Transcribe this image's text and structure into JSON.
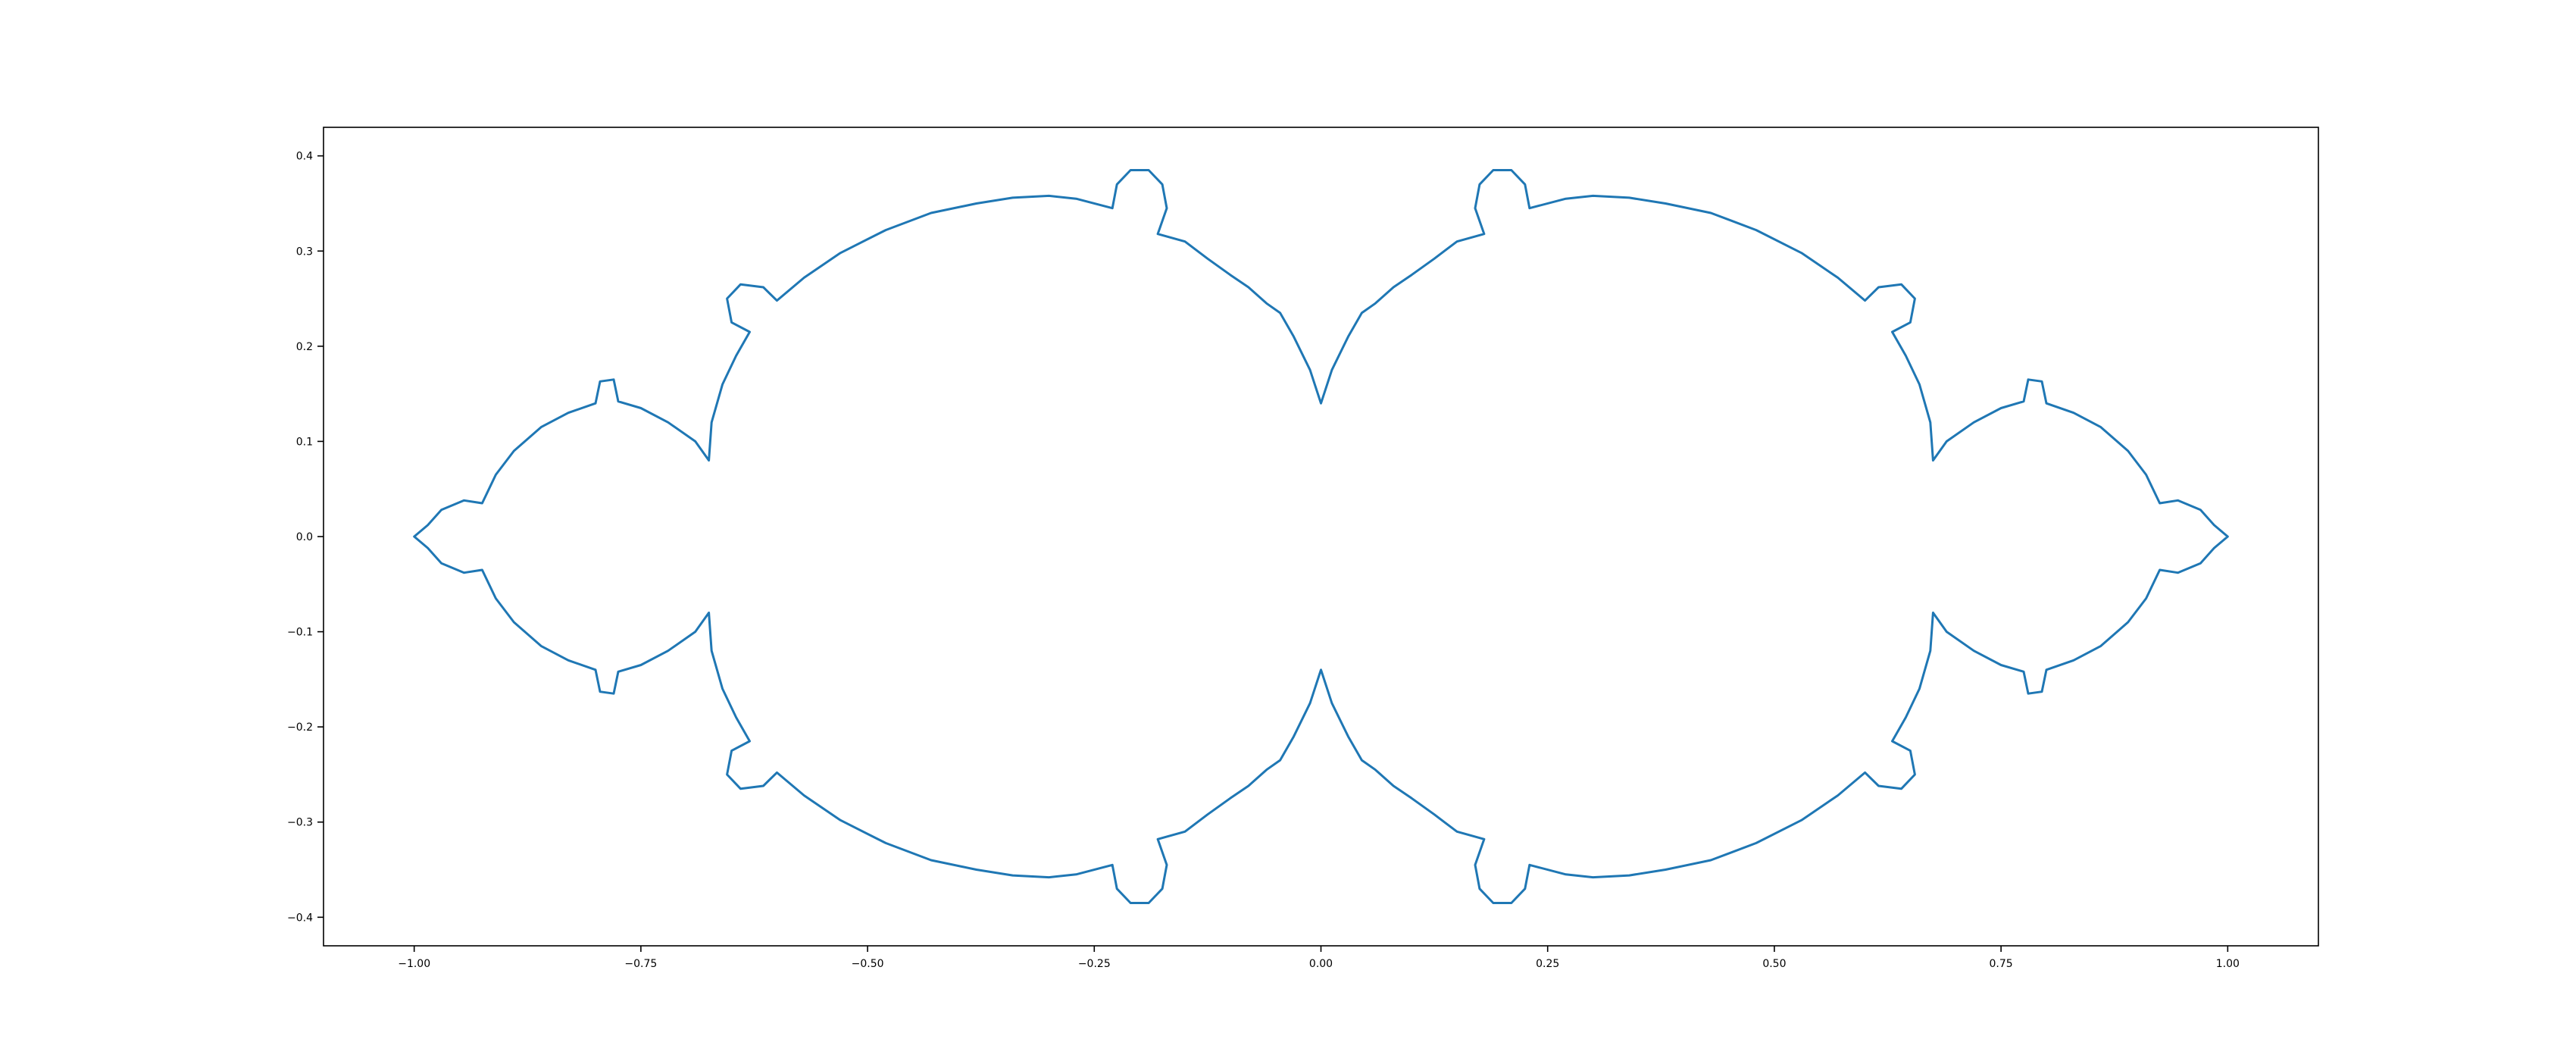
{
  "chart_data": {
    "type": "line",
    "title": "",
    "xlabel": "",
    "ylabel": "",
    "xlim": [
      -1.1,
      1.1
    ],
    "ylim": [
      -0.43,
      0.43
    ],
    "x_ticks": [
      -1.0,
      -0.75,
      -0.5,
      -0.25,
      0.0,
      0.25,
      0.5,
      0.75,
      1.0
    ],
    "x_tick_labels": [
      "−1.00",
      "−0.75",
      "−0.50",
      "−0.25",
      "0.00",
      "0.25",
      "0.50",
      "0.75",
      "1.00"
    ],
    "y_ticks": [
      -0.4,
      -0.3,
      -0.2,
      -0.1,
      0.0,
      0.1,
      0.2,
      0.3,
      0.4
    ],
    "y_tick_labels": [
      "−0.4",
      "−0.3",
      "−0.2",
      "−0.1",
      "0.0",
      "0.1",
      "0.2",
      "0.3",
      "0.4"
    ],
    "grid": false,
    "legend": "none",
    "series": [
      {
        "color": "#1f77b4",
        "description": "closed fractal boundary curve symmetric about both axes",
        "points": [
          [
            0.0,
            0.14
          ],
          [
            0.012,
            0.175
          ],
          [
            0.03,
            0.21
          ],
          [
            0.045,
            0.235
          ],
          [
            0.06,
            0.245
          ],
          [
            0.08,
            0.262
          ],
          [
            0.1,
            0.275
          ],
          [
            0.125,
            0.292
          ],
          [
            0.15,
            0.31
          ],
          [
            0.18,
            0.318
          ],
          [
            0.17,
            0.345
          ],
          [
            0.175,
            0.37
          ],
          [
            0.19,
            0.385
          ],
          [
            0.21,
            0.385
          ],
          [
            0.225,
            0.37
          ],
          [
            0.23,
            0.345
          ],
          [
            0.27,
            0.355
          ],
          [
            0.3,
            0.358
          ],
          [
            0.34,
            0.356
          ],
          [
            0.38,
            0.35
          ],
          [
            0.43,
            0.34
          ],
          [
            0.48,
            0.322
          ],
          [
            0.53,
            0.298
          ],
          [
            0.57,
            0.272
          ],
          [
            0.6,
            0.248
          ],
          [
            0.615,
            0.262
          ],
          [
            0.64,
            0.265
          ],
          [
            0.655,
            0.25
          ],
          [
            0.65,
            0.225
          ],
          [
            0.63,
            0.215
          ],
          [
            0.645,
            0.19
          ],
          [
            0.66,
            0.16
          ],
          [
            0.672,
            0.12
          ],
          [
            0.675,
            0.08
          ],
          [
            0.69,
            0.1
          ],
          [
            0.72,
            0.12
          ],
          [
            0.75,
            0.135
          ],
          [
            0.775,
            0.142
          ],
          [
            0.78,
            0.165
          ],
          [
            0.795,
            0.163
          ],
          [
            0.8,
            0.14
          ],
          [
            0.83,
            0.13
          ],
          [
            0.86,
            0.115
          ],
          [
            0.89,
            0.09
          ],
          [
            0.91,
            0.065
          ],
          [
            0.925,
            0.035
          ],
          [
            0.945,
            0.038
          ],
          [
            0.97,
            0.028
          ],
          [
            0.985,
            0.012
          ],
          [
            1.0,
            0.0
          ],
          [
            0.985,
            -0.012
          ],
          [
            0.97,
            -0.028
          ],
          [
            0.945,
            -0.038
          ],
          [
            0.925,
            -0.035
          ],
          [
            0.91,
            -0.065
          ],
          [
            0.89,
            -0.09
          ],
          [
            0.86,
            -0.115
          ],
          [
            0.83,
            -0.13
          ],
          [
            0.8,
            -0.14
          ],
          [
            0.795,
            -0.163
          ],
          [
            0.78,
            -0.165
          ],
          [
            0.775,
            -0.142
          ],
          [
            0.75,
            -0.135
          ],
          [
            0.72,
            -0.12
          ],
          [
            0.69,
            -0.1
          ],
          [
            0.675,
            -0.08
          ],
          [
            0.672,
            -0.12
          ],
          [
            0.66,
            -0.16
          ],
          [
            0.645,
            -0.19
          ],
          [
            0.63,
            -0.215
          ],
          [
            0.65,
            -0.225
          ],
          [
            0.655,
            -0.25
          ],
          [
            0.64,
            -0.265
          ],
          [
            0.615,
            -0.262
          ],
          [
            0.6,
            -0.248
          ],
          [
            0.57,
            -0.272
          ],
          [
            0.53,
            -0.298
          ],
          [
            0.48,
            -0.322
          ],
          [
            0.43,
            -0.34
          ],
          [
            0.38,
            -0.35
          ],
          [
            0.34,
            -0.356
          ],
          [
            0.3,
            -0.358
          ],
          [
            0.27,
            -0.355
          ],
          [
            0.23,
            -0.345
          ],
          [
            0.225,
            -0.37
          ],
          [
            0.21,
            -0.385
          ],
          [
            0.19,
            -0.385
          ],
          [
            0.175,
            -0.37
          ],
          [
            0.17,
            -0.345
          ],
          [
            0.18,
            -0.318
          ],
          [
            0.15,
            -0.31
          ],
          [
            0.125,
            -0.292
          ],
          [
            0.1,
            -0.275
          ],
          [
            0.08,
            -0.262
          ],
          [
            0.06,
            -0.245
          ],
          [
            0.045,
            -0.235
          ],
          [
            0.03,
            -0.21
          ],
          [
            0.012,
            -0.175
          ],
          [
            0.0,
            -0.14
          ],
          [
            -0.012,
            -0.175
          ],
          [
            -0.03,
            -0.21
          ],
          [
            -0.045,
            -0.235
          ],
          [
            -0.06,
            -0.245
          ],
          [
            -0.08,
            -0.262
          ],
          [
            -0.1,
            -0.275
          ],
          [
            -0.125,
            -0.292
          ],
          [
            -0.15,
            -0.31
          ],
          [
            -0.18,
            -0.318
          ],
          [
            -0.17,
            -0.345
          ],
          [
            -0.175,
            -0.37
          ],
          [
            -0.19,
            -0.385
          ],
          [
            -0.21,
            -0.385
          ],
          [
            -0.225,
            -0.37
          ],
          [
            -0.23,
            -0.345
          ],
          [
            -0.27,
            -0.355
          ],
          [
            -0.3,
            -0.358
          ],
          [
            -0.34,
            -0.356
          ],
          [
            -0.38,
            -0.35
          ],
          [
            -0.43,
            -0.34
          ],
          [
            -0.48,
            -0.322
          ],
          [
            -0.53,
            -0.298
          ],
          [
            -0.57,
            -0.272
          ],
          [
            -0.6,
            -0.248
          ],
          [
            -0.615,
            -0.262
          ],
          [
            -0.64,
            -0.265
          ],
          [
            -0.655,
            -0.25
          ],
          [
            -0.65,
            -0.225
          ],
          [
            -0.63,
            -0.215
          ],
          [
            -0.645,
            -0.19
          ],
          [
            -0.66,
            -0.16
          ],
          [
            -0.672,
            -0.12
          ],
          [
            -0.675,
            -0.08
          ],
          [
            -0.69,
            -0.1
          ],
          [
            -0.72,
            -0.12
          ],
          [
            -0.75,
            -0.135
          ],
          [
            -0.775,
            -0.142
          ],
          [
            -0.78,
            -0.165
          ],
          [
            -0.795,
            -0.163
          ],
          [
            -0.8,
            -0.14
          ],
          [
            -0.83,
            -0.13
          ],
          [
            -0.86,
            -0.115
          ],
          [
            -0.89,
            -0.09
          ],
          [
            -0.91,
            -0.065
          ],
          [
            -0.925,
            -0.035
          ],
          [
            -0.945,
            -0.038
          ],
          [
            -0.97,
            -0.028
          ],
          [
            -0.985,
            -0.012
          ],
          [
            -1.0,
            0.0
          ],
          [
            -0.985,
            0.012
          ],
          [
            -0.97,
            0.028
          ],
          [
            -0.945,
            0.038
          ],
          [
            -0.925,
            0.035
          ],
          [
            -0.91,
            0.065
          ],
          [
            -0.89,
            0.09
          ],
          [
            -0.86,
            0.115
          ],
          [
            -0.83,
            0.13
          ],
          [
            -0.8,
            0.14
          ],
          [
            -0.795,
            0.163
          ],
          [
            -0.78,
            0.165
          ],
          [
            -0.775,
            0.142
          ],
          [
            -0.75,
            0.135
          ],
          [
            -0.72,
            0.12
          ],
          [
            -0.69,
            0.1
          ],
          [
            -0.675,
            0.08
          ],
          [
            -0.672,
            0.12
          ],
          [
            -0.66,
            0.16
          ],
          [
            -0.645,
            0.19
          ],
          [
            -0.63,
            0.215
          ],
          [
            -0.65,
            0.225
          ],
          [
            -0.655,
            0.25
          ],
          [
            -0.64,
            0.265
          ],
          [
            -0.615,
            0.262
          ],
          [
            -0.6,
            0.248
          ],
          [
            -0.57,
            0.272
          ],
          [
            -0.53,
            0.298
          ],
          [
            -0.48,
            0.322
          ],
          [
            -0.43,
            0.34
          ],
          [
            -0.38,
            0.35
          ],
          [
            -0.34,
            0.356
          ],
          [
            -0.3,
            0.358
          ],
          [
            -0.27,
            0.355
          ],
          [
            -0.23,
            0.345
          ],
          [
            -0.225,
            0.37
          ],
          [
            -0.21,
            0.385
          ],
          [
            -0.19,
            0.385
          ],
          [
            -0.175,
            0.37
          ],
          [
            -0.17,
            0.345
          ],
          [
            -0.18,
            0.318
          ],
          [
            -0.15,
            0.31
          ],
          [
            -0.125,
            0.292
          ],
          [
            -0.1,
            0.275
          ],
          [
            -0.08,
            0.262
          ],
          [
            -0.06,
            0.245
          ],
          [
            -0.045,
            0.235
          ],
          [
            -0.03,
            0.21
          ],
          [
            -0.012,
            0.175
          ],
          [
            0.0,
            0.14
          ]
        ]
      }
    ]
  }
}
